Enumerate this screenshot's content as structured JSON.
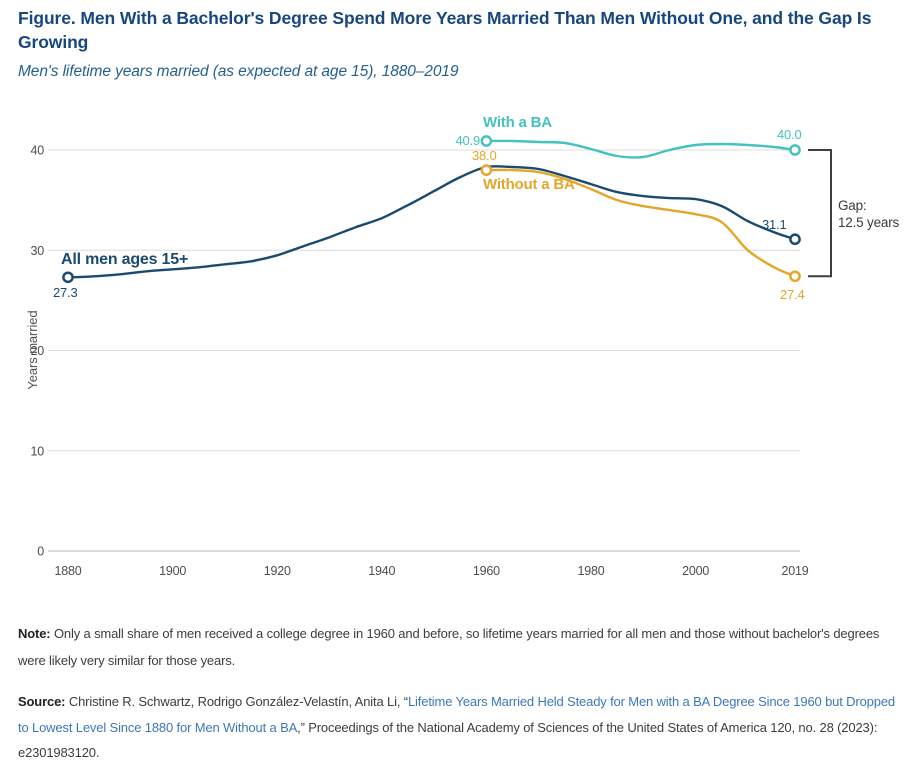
{
  "figure": {
    "title": "Figure. Men With a Bachelor's Degree Spend More Years Married Than Men Without One, and the Gap Is Growing",
    "subtitle": "Men's lifetime years married (as expected at age 15), 1880–2019"
  },
  "colors": {
    "title": "#17477e",
    "subtitle": "#26608f",
    "all_men": "#1b4a6f",
    "with_ba": "#44c2bf",
    "without_ba": "#e4a62a",
    "grid": "#dcdcdc",
    "axis": "#b5b5b5",
    "tick": "#4d4d4d",
    "bracket": "#3f3f3f",
    "link": "#3c78bb",
    "text": "#3d3d3d"
  },
  "chart_data": {
    "type": "line",
    "title": "Men's lifetime years married (as expected at age 15), 1880–2019",
    "xlabel": "",
    "ylabel": "Years married",
    "xlim": [
      1880,
      2019
    ],
    "ylim": [
      0,
      43
    ],
    "x_ticks": [
      1880,
      1900,
      1920,
      1940,
      1960,
      1980,
      2000,
      2019
    ],
    "y_ticks": [
      0,
      10,
      20,
      30,
      40
    ],
    "grid": "horizontal",
    "legend_position": "inline-labels",
    "series": [
      {
        "name": "All men ages 15+",
        "color_key": "all_men",
        "x": [
          1880,
          1885,
          1890,
          1895,
          1900,
          1905,
          1910,
          1915,
          1920,
          1925,
          1930,
          1935,
          1940,
          1945,
          1950,
          1955,
          1960,
          1965,
          1970,
          1975,
          1980,
          1985,
          1990,
          1995,
          2000,
          2005,
          2010,
          2015,
          2019
        ],
        "values": [
          27.3,
          27.4,
          27.6,
          27.9,
          28.1,
          28.3,
          28.6,
          28.9,
          29.5,
          30.4,
          31.3,
          32.3,
          33.2,
          34.5,
          35.9,
          37.3,
          38.3,
          38.3,
          38.1,
          37.4,
          36.6,
          35.8,
          35.4,
          35.2,
          35.1,
          34.4,
          32.9,
          31.8,
          31.1
        ],
        "start_label": "27.3",
        "end_label": "31.1"
      },
      {
        "name": "With a BA",
        "color_key": "with_ba",
        "x": [
          1960,
          1965,
          1970,
          1975,
          1980,
          1985,
          1990,
          1995,
          2000,
          2005,
          2010,
          2015,
          2019
        ],
        "values": [
          40.9,
          40.9,
          40.8,
          40.7,
          40.1,
          39.4,
          39.3,
          40.0,
          40.5,
          40.6,
          40.5,
          40.3,
          40.0
        ],
        "start_label": "40.9",
        "end_label": "40.0"
      },
      {
        "name": "Without a BA",
        "color_key": "without_ba",
        "x": [
          1960,
          1965,
          1970,
          1975,
          1980,
          1985,
          1990,
          1995,
          2000,
          2005,
          2010,
          2015,
          2019
        ],
        "values": [
          38.0,
          38.0,
          37.8,
          37.1,
          36.1,
          35.0,
          34.4,
          34.0,
          33.6,
          32.8,
          30.0,
          28.3,
          27.4
        ],
        "start_label": "38.0",
        "end_label": "27.4"
      }
    ],
    "annotations": {
      "gap_label": "Gap:",
      "gap_value": "12.5 years"
    }
  },
  "note": {
    "label": "Note:",
    "text": "Only a small share of men received a college degree in 1960 and before, so lifetime years married for all men and those without bachelor's degrees were likely very similar for those years."
  },
  "source": {
    "label": "Source:",
    "before_link": "Christine R. Schwartz, Rodrigo González-Velastín, Anita Li,  “",
    "link_text": "Lifetime Years Married Held Steady for Men with a BA Degree Since 1960 but Dropped to Lowest Level Since 1880 for Men Without a BA",
    "after_link": ",” Proceedings of the National Academy of Sciences of the United States of America 120, no. 28 (2023): e2301983120."
  }
}
